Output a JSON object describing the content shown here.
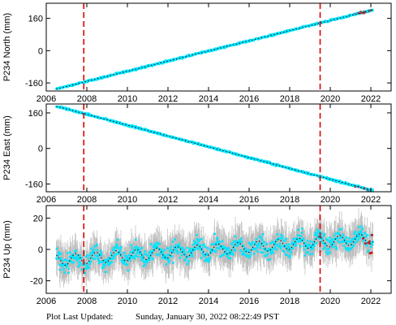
{
  "footer": {
    "label": "Plot Last Updated:",
    "timestamp": "Sunday, January 30, 2022 08:22:49 PST"
  },
  "colors": {
    "data": "#00e5ff",
    "error": "#b0b0b0",
    "model": "#000000",
    "event": "#e00000",
    "recent": "#e00000"
  },
  "chart_data": [
    {
      "type": "scatter",
      "ylabel": "P234 North (mm)",
      "xlim": [
        2006,
        2023
      ],
      "ylim": [
        -200,
        235
      ],
      "xticks": [
        2006,
        2008,
        2010,
        2012,
        2014,
        2016,
        2018,
        2020,
        2022
      ],
      "xtick_labels": [
        "2006",
        "2008",
        "2010",
        "2012",
        "2014",
        "2016",
        "2018",
        "2020",
        "2022"
      ],
      "yticks": [
        -160,
        0,
        160
      ],
      "ytick_labels": [
        "-160",
        "0",
        "160"
      ],
      "event_lines_x": [
        2007.85,
        2019.5
      ],
      "trend": {
        "x": [
          2006.5,
          2022.1
        ],
        "y": [
          -190,
          202
        ]
      },
      "recent_x_start": 2021.2,
      "seasonal_amp": 0,
      "noise": 4,
      "error": 3
    },
    {
      "type": "scatter",
      "ylabel": "P234 East (mm)",
      "xlim": [
        2006,
        2023
      ],
      "ylim": [
        -195,
        200
      ],
      "xticks": [
        2006,
        2008,
        2010,
        2012,
        2014,
        2016,
        2018,
        2020,
        2022
      ],
      "xtick_labels": [
        "2006",
        "2008",
        "2010",
        "2012",
        "2014",
        "2016",
        "2018",
        "2020",
        "2022"
      ],
      "yticks": [
        -160,
        0,
        160
      ],
      "ytick_labels": [
        "-160",
        "0",
        "160"
      ],
      "event_lines_x": [
        2007.85,
        2019.5
      ],
      "trend": {
        "x": [
          2006.5,
          2022.1
        ],
        "y": [
          190,
          -190
        ]
      },
      "recent_x_start": 2021.2,
      "seasonal_amp": 0,
      "noise": 4,
      "error": 3
    },
    {
      "type": "scatter",
      "ylabel": "P234 Up (mm)",
      "xlim": [
        2006,
        2023
      ],
      "ylim": [
        -28,
        28
      ],
      "xticks": [
        2006,
        2008,
        2010,
        2012,
        2014,
        2016,
        2018,
        2020,
        2022
      ],
      "xtick_labels": [
        "2006",
        "2008",
        "2010",
        "2012",
        "2014",
        "2016",
        "2018",
        "2020",
        "2022"
      ],
      "yticks": [
        -20,
        0,
        20
      ],
      "ytick_labels": [
        "-20",
        "0",
        "20"
      ],
      "event_lines_x": [
        2007.85,
        2019.5
      ],
      "trend": {
        "x": [
          2006.5,
          2022.1
        ],
        "y": [
          -7,
          7
        ]
      },
      "recent_x_start": 2021.6,
      "seasonal_amp": 3.5,
      "noise": 5,
      "error": 9
    }
  ]
}
